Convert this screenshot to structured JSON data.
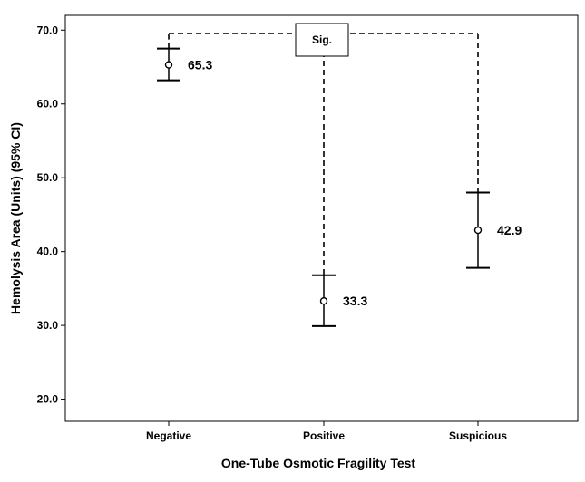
{
  "chart_data": {
    "type": "scatter",
    "xlabel": "One-Tube Osmotic Fragility Test",
    "ylabel": "Hemolysis Area (Units) (95% CI)",
    "categories": [
      "Negative",
      "Positive",
      "Suspicious"
    ],
    "ylim": [
      17.0,
      72.0
    ],
    "yticks": [
      20.0,
      30.0,
      40.0,
      50.0,
      60.0,
      70.0
    ],
    "ytick_labels": [
      "20.0",
      "30.0",
      "40.0",
      "50.0",
      "60.0",
      "70.0"
    ],
    "grid": false,
    "series": [
      {
        "means": [
          65.3,
          33.3,
          42.9
        ],
        "mean_labels": [
          "65.3",
          "33.3",
          "42.9"
        ],
        "ci_lower": [
          63.2,
          29.9,
          37.8
        ],
        "ci_upper": [
          67.5,
          36.8,
          48.0
        ]
      }
    ],
    "annotation": {
      "text": "Sig.",
      "type": "significance-bracket",
      "connects": [
        "Negative",
        "Positive",
        "Suspicious"
      ]
    }
  }
}
